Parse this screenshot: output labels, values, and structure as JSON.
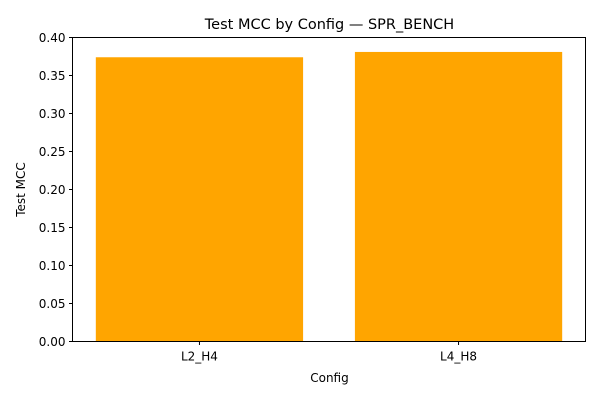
{
  "chart_data": {
    "type": "bar",
    "title": "Test MCC by Config — SPR_BENCH",
    "xlabel": "Config",
    "ylabel": "Test MCC",
    "categories": [
      "L2_H4",
      "L4_H8"
    ],
    "values": [
      0.374,
      0.381
    ],
    "ylim": [
      0,
      0.4
    ],
    "yticks": [
      "0.00",
      "0.05",
      "0.10",
      "0.15",
      "0.20",
      "0.25",
      "0.30",
      "0.35",
      "0.40"
    ],
    "bar_color": "#ffa500",
    "grid": false,
    "legend": "none"
  }
}
